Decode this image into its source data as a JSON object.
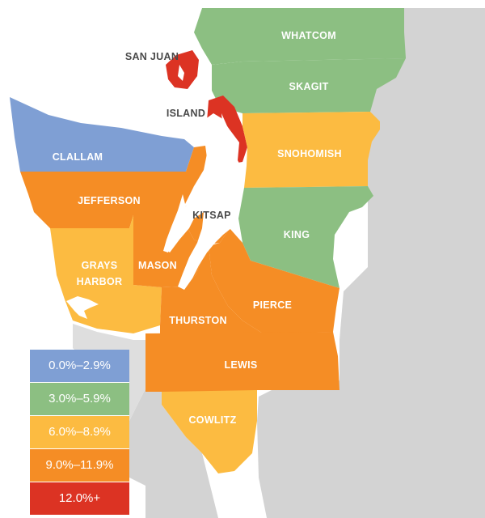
{
  "colors": {
    "band0": "#7f9fd4",
    "band1": "#8cbf82",
    "band2": "#fcbb41",
    "band3": "#f58d25",
    "band4": "#dc3323",
    "neighbor": "#d3d3d3",
    "water": "#ffffff"
  },
  "legend": [
    {
      "label": "0.0%–2.9%",
      "color": "#7f9fd4"
    },
    {
      "label": "3.0%–5.9%",
      "color": "#8cbf82"
    },
    {
      "label": "6.0%–8.9%",
      "color": "#fcbb41"
    },
    {
      "label": "9.0%–11.9%",
      "color": "#f58d25"
    },
    {
      "label": "12.0%+",
      "color": "#dc3323"
    }
  ],
  "counties": {
    "whatcom": {
      "name": "WHATCOM",
      "band": "3.0%–5.9%"
    },
    "skagit": {
      "name": "SKAGIT",
      "band": "3.0%–5.9%"
    },
    "san_juan": {
      "name": "SAN JUAN",
      "band": "12.0%+"
    },
    "island": {
      "name": "ISLAND",
      "band": "12.0%+"
    },
    "snohomish": {
      "name": "SNOHOMISH",
      "band": "6.0%–8.9%"
    },
    "clallam": {
      "name": "CLALLAM",
      "band": "0.0%–2.9%"
    },
    "jefferson": {
      "name": "JEFFERSON",
      "band": "9.0%–11.9%"
    },
    "kitsap": {
      "name": "KITSAP",
      "band": "9.0%–11.9%"
    },
    "king": {
      "name": "KING",
      "band": "3.0%–5.9%"
    },
    "grays_harbor_line1": {
      "name": "GRAYS"
    },
    "grays_harbor_line2": {
      "name": "HARBOR",
      "band": "6.0%–8.9%"
    },
    "mason": {
      "name": "MASON",
      "band": "9.0%–11.9%"
    },
    "pierce": {
      "name": "PIERCE",
      "band": "9.0%–11.9%"
    },
    "thurston": {
      "name": "THURSTON",
      "band": "9.0%–11.9%"
    },
    "lewis": {
      "name": "LEWIS",
      "band": "9.0%–11.9%"
    },
    "cowlitz": {
      "name": "COWLITZ",
      "band": "6.0%–8.9%"
    }
  }
}
